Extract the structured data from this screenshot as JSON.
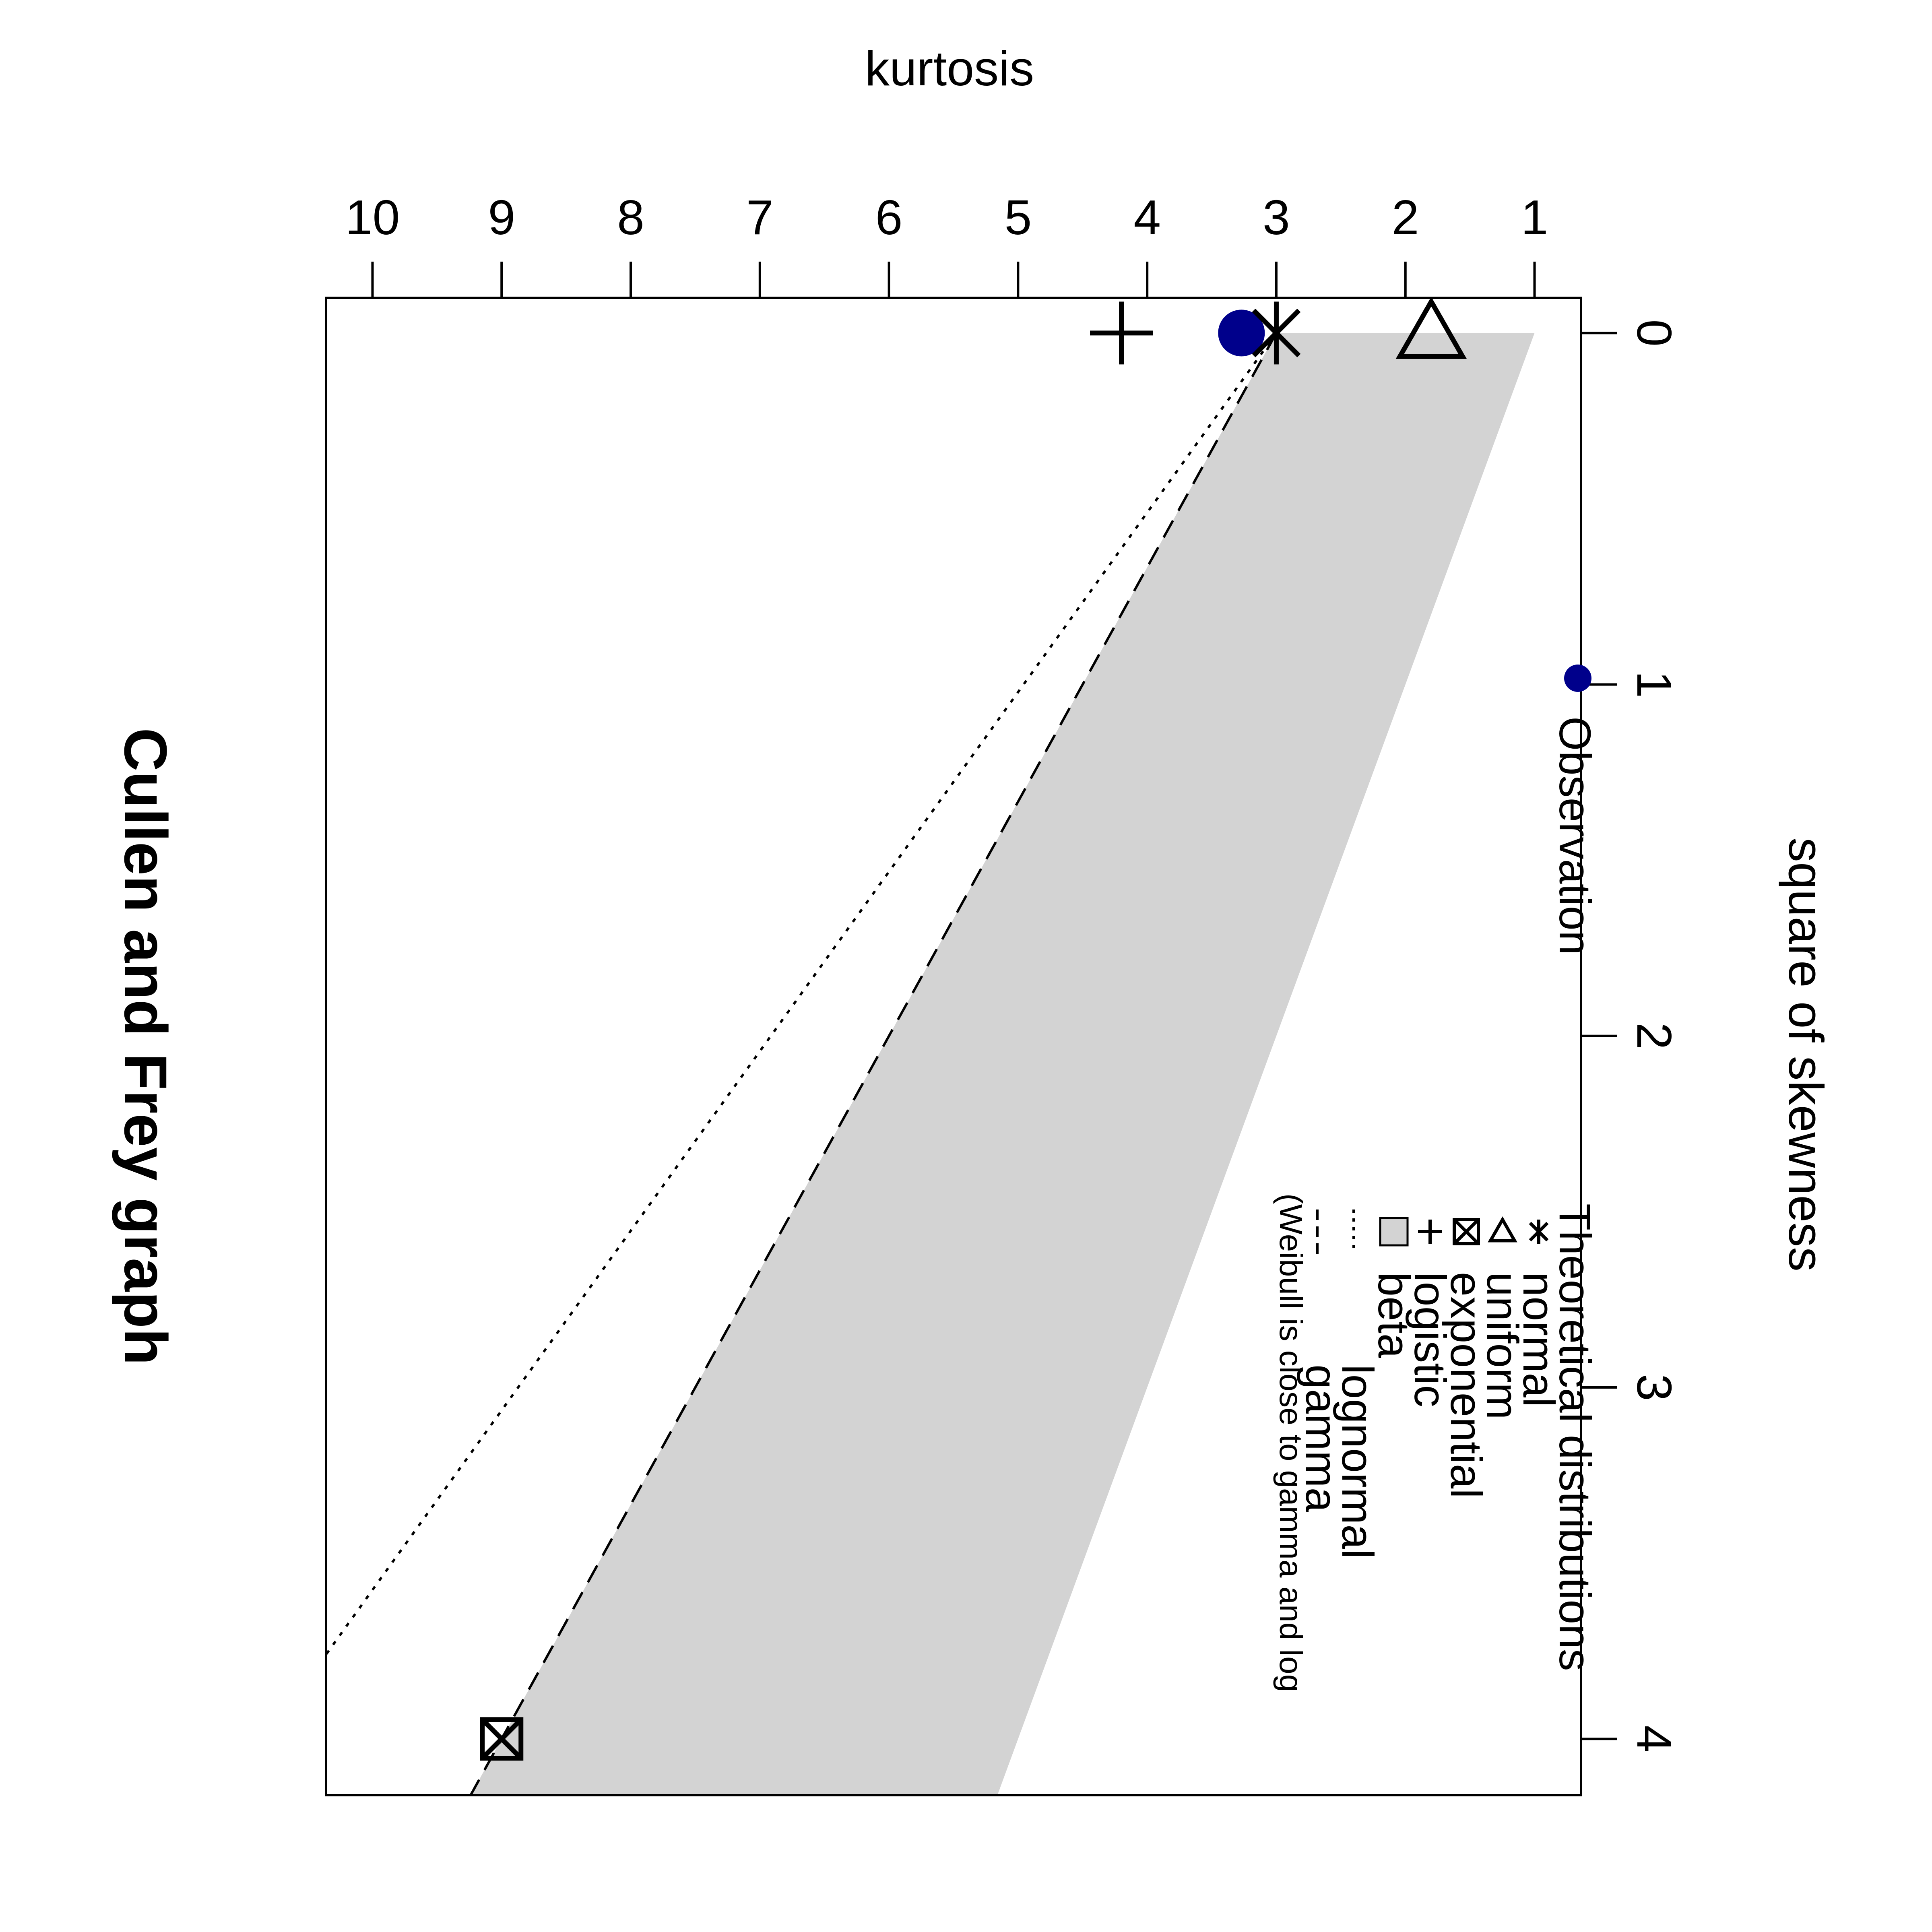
{
  "chart_data": {
    "type": "scatter",
    "title": "Cullen and Frey graph",
    "xlabel": "square of skewness",
    "ylabel": "kurtosis",
    "xlim": [
      -0.1,
      4.16
    ],
    "ylim": [
      0.64,
      10.36
    ],
    "x_ticks": [
      0,
      1,
      2,
      3,
      4
    ],
    "y_ticks": [
      10,
      9,
      8,
      7,
      6,
      5,
      4,
      3,
      2,
      1
    ],
    "y_reversed": true,
    "observation": {
      "name": "Observation",
      "x": 0.0,
      "y": 3.27,
      "color": "#00008B"
    },
    "theoretical_points": [
      {
        "name": "normal",
        "symbol": "asterisk",
        "x": 0,
        "y": 3
      },
      {
        "name": "uniform",
        "symbol": "triangle",
        "x": 0,
        "y": 1.8
      },
      {
        "name": "exponential",
        "symbol": "box-x",
        "x": 4,
        "y": 9
      },
      {
        "name": "logistic",
        "symbol": "plus",
        "x": 0,
        "y": 4.2
      }
    ],
    "beta_region": {
      "name": "beta",
      "color": "#D3D3D3",
      "polygon": [
        [
          0,
          1
        ],
        [
          4.16,
          5.16
        ],
        [
          4.16,
          9.24
        ],
        [
          0,
          3
        ]
      ]
    },
    "lognormal_line": {
      "name": "lognormal",
      "style": "dotted",
      "points": [
        [
          0,
          3
        ],
        [
          3.76,
          10.36
        ]
      ]
    },
    "gamma_line": {
      "name": "gamma",
      "style": "dashed",
      "points": [
        [
          0,
          3
        ],
        [
          4.16,
          9.24
        ]
      ]
    },
    "legend_observation": {
      "placement": "top-right",
      "entries": [
        "Observation"
      ]
    },
    "legend_theoretical": {
      "placement": "bottom-right",
      "title": "Theoretical distributions",
      "entries": [
        "normal",
        "uniform",
        "exponential",
        "logistic",
        "beta",
        "lognormal",
        "gamma"
      ],
      "note": "(Weibull is close to gamma and log"
    },
    "grid": false
  }
}
